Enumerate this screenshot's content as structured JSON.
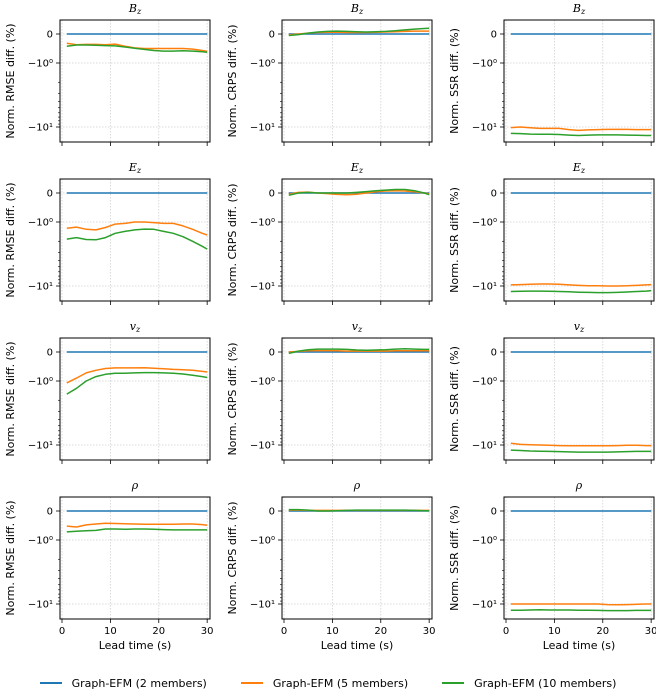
{
  "chart_data": {
    "type": "line",
    "layout": "grid 4 rows x 3 columns",
    "yscale": "symlog",
    "ylim": [
      -17,
      0.5
    ],
    "xlim": [
      0,
      31
    ],
    "x_ticks": [
      0,
      10,
      20,
      30
    ],
    "x_tick_labels": [
      "0",
      "10",
      "20",
      "30"
    ],
    "y_ticks": [
      0,
      -1,
      -10
    ],
    "y_tick_labels": [
      "0",
      "−10⁰",
      "−10¹"
    ],
    "xlabel": "Lead time (s)",
    "grid": true,
    "legend_position": "bottom-center",
    "x": [
      1,
      3,
      5,
      7,
      9,
      11,
      13,
      15,
      17,
      19,
      21,
      23,
      25,
      27,
      29,
      30
    ],
    "series_names": [
      "Graph-EFM (2 members)",
      "Graph-EFM (5 members)",
      "Graph-EFM (10 members)"
    ],
    "series_colors": [
      "#1f77b4",
      "#ff7f0e",
      "#2ca02c"
    ],
    "rows": [
      "B_z",
      "E_z",
      "v_z",
      "ρ"
    ],
    "row_titles": [
      "Bz",
      "Ez",
      "vz",
      "ρ"
    ],
    "columns": [
      "RMSE",
      "CRPS",
      "SSR"
    ],
    "ylabels": [
      "Norm. RMSE diff. (%)",
      "Norm. CRPS diff. (%)",
      "Norm. SSR diff. (%)"
    ],
    "panels": [
      {
        "row": 0,
        "col": 0,
        "title": "Bz",
        "ylabel": "Norm. RMSE diff. (%)",
        "series": [
          {
            "name": "Graph-EFM (2 members)",
            "values": [
              0,
              0,
              0,
              0,
              0,
              0,
              0,
              0,
              0,
              0,
              0,
              0,
              0,
              0,
              0,
              0
            ]
          },
          {
            "name": "Graph-EFM (5 members)",
            "values": [
              -0.32,
              -0.37,
              -0.36,
              -0.36,
              -0.37,
              -0.35,
              -0.42,
              -0.48,
              -0.5,
              -0.5,
              -0.5,
              -0.5,
              -0.5,
              -0.52,
              -0.57,
              -0.6
            ]
          },
          {
            "name": "Graph-EFM (10 members)",
            "values": [
              -0.42,
              -0.38,
              -0.38,
              -0.39,
              -0.4,
              -0.41,
              -0.45,
              -0.49,
              -0.53,
              -0.57,
              -0.59,
              -0.59,
              -0.58,
              -0.59,
              -0.61,
              -0.63
            ]
          }
        ]
      },
      {
        "row": 0,
        "col": 1,
        "title": "Bz",
        "ylabel": "Norm. CRPS diff. (%)",
        "series": [
          {
            "name": "Graph-EFM (2 members)",
            "values": [
              0,
              0,
              0,
              0,
              0,
              0,
              0,
              0,
              0,
              0,
              0,
              0,
              0,
              0,
              0,
              0
            ]
          },
          {
            "name": "Graph-EFM (5 members)",
            "values": [
              -0.03,
              0.0,
              0.03,
              0.05,
              0.06,
              0.06,
              0.05,
              0.05,
              0.05,
              0.06,
              0.07,
              0.08,
              0.09,
              0.1,
              0.1,
              0.1
            ]
          },
          {
            "name": "Graph-EFM (10 members)",
            "values": [
              -0.05,
              -0.02,
              0.03,
              0.07,
              0.09,
              0.1,
              0.09,
              0.08,
              0.07,
              0.08,
              0.09,
              0.11,
              0.14,
              0.17,
              0.19,
              0.2
            ]
          }
        ]
      },
      {
        "row": 0,
        "col": 2,
        "title": "Bz",
        "ylabel": "Norm. SSR diff. (%)",
        "series": [
          {
            "name": "Graph-EFM (2 members)",
            "values": [
              0,
              0,
              0,
              0,
              0,
              0,
              0,
              0,
              0,
              0,
              0,
              0,
              0,
              0,
              0,
              0
            ]
          },
          {
            "name": "Graph-EFM (5 members)",
            "values": [
              -10.2,
              -10.0,
              -10.3,
              -10.5,
              -10.5,
              -10.5,
              -11.0,
              -11.3,
              -11.1,
              -11.0,
              -10.9,
              -10.9,
              -10.9,
              -11.0,
              -11.0,
              -11.0
            ]
          },
          {
            "name": "Graph-EFM (10 members)",
            "values": [
              -12.6,
              -12.7,
              -12.9,
              -13.0,
              -13.0,
              -13.1,
              -13.4,
              -13.6,
              -13.4,
              -13.3,
              -13.3,
              -13.3,
              -13.4,
              -13.5,
              -13.6,
              -13.6
            ]
          }
        ]
      },
      {
        "row": 1,
        "col": 0,
        "title": "Ez",
        "ylabel": "Norm. RMSE diff. (%)",
        "series": [
          {
            "name": "Graph-EFM (2 members)",
            "values": [
              0,
              0,
              0,
              0,
              0,
              0,
              0,
              0,
              0,
              0,
              0,
              0,
              0,
              0,
              0,
              0
            ]
          },
          {
            "name": "Graph-EFM (5 members)",
            "values": [
              -1.25,
              -1.2,
              -1.3,
              -1.33,
              -1.22,
              -1.08,
              -1.05,
              -1.0,
              -1.0,
              -1.02,
              -1.05,
              -1.05,
              -1.15,
              -1.3,
              -1.5,
              -1.6
            ]
          },
          {
            "name": "Graph-EFM (10 members)",
            "values": [
              -1.85,
              -1.75,
              -1.88,
              -1.9,
              -1.75,
              -1.5,
              -1.4,
              -1.33,
              -1.29,
              -1.3,
              -1.4,
              -1.5,
              -1.7,
              -2.0,
              -2.4,
              -2.65
            ]
          }
        ]
      },
      {
        "row": 1,
        "col": 1,
        "title": "Ez",
        "ylabel": "Norm. CRPS diff. (%)",
        "series": [
          {
            "name": "Graph-EFM (2 members)",
            "values": [
              0,
              0,
              0,
              0,
              0,
              0,
              0,
              0,
              0,
              0,
              0,
              0,
              0,
              0,
              0,
              0
            ]
          },
          {
            "name": "Graph-EFM (5 members)",
            "values": [
              -0.05,
              0.02,
              0.03,
              0.0,
              -0.02,
              -0.05,
              -0.06,
              -0.04,
              0.0,
              0.04,
              0.07,
              0.08,
              0.07,
              0.04,
              0.0,
              -0.03
            ]
          },
          {
            "name": "Graph-EFM (10 members)",
            "values": [
              -0.08,
              0.0,
              0.02,
              0.0,
              0.0,
              0.0,
              0.0,
              0.02,
              0.05,
              0.08,
              0.1,
              0.12,
              0.12,
              0.08,
              0.0,
              -0.06
            ]
          }
        ]
      },
      {
        "row": 1,
        "col": 2,
        "title": "Ez",
        "ylabel": "Norm. SSR diff. (%)",
        "series": [
          {
            "name": "Graph-EFM (2 members)",
            "values": [
              0,
              0,
              0,
              0,
              0,
              0,
              0,
              0,
              0,
              0,
              0,
              0,
              0,
              0,
              0,
              0
            ]
          },
          {
            "name": "Graph-EFM (5 members)",
            "values": [
              -9.6,
              -9.5,
              -9.4,
              -9.3,
              -9.3,
              -9.4,
              -9.6,
              -9.8,
              -9.9,
              -9.9,
              -10.0,
              -10.0,
              -9.9,
              -9.8,
              -9.6,
              -9.5
            ]
          },
          {
            "name": "Graph-EFM (10 members)",
            "values": [
              -12.2,
              -12.1,
              -12.0,
              -12.0,
              -12.1,
              -12.2,
              -12.3,
              -12.5,
              -12.6,
              -12.7,
              -12.7,
              -12.6,
              -12.4,
              -12.2,
              -12.0,
              -11.8
            ]
          }
        ]
      },
      {
        "row": 2,
        "col": 0,
        "title": "vz",
        "ylabel": "Norm. RMSE diff. (%)",
        "series": [
          {
            "name": "Graph-EFM (2 members)",
            "values": [
              0,
              0,
              0,
              0,
              0,
              0,
              0,
              0,
              0,
              0,
              0,
              0,
              0,
              0,
              0,
              0
            ]
          },
          {
            "name": "Graph-EFM (5 members)",
            "values": [
              -1.07,
              -0.9,
              -0.72,
              -0.63,
              -0.57,
              -0.55,
              -0.55,
              -0.55,
              -0.54,
              -0.56,
              -0.58,
              -0.6,
              -0.61,
              -0.63,
              -0.67,
              -0.69
            ]
          },
          {
            "name": "Graph-EFM (10 members)",
            "values": [
              -1.6,
              -1.3,
              -1.0,
              -0.85,
              -0.77,
              -0.73,
              -0.73,
              -0.72,
              -0.71,
              -0.71,
              -0.72,
              -0.73,
              -0.76,
              -0.8,
              -0.85,
              -0.88
            ]
          }
        ]
      },
      {
        "row": 2,
        "col": 1,
        "title": "vz",
        "ylabel": "Norm. CRPS diff. (%)",
        "series": [
          {
            "name": "Graph-EFM (2 members)",
            "values": [
              0,
              0,
              0,
              0,
              0,
              0,
              0,
              0,
              0,
              0,
              0,
              0,
              0,
              0,
              0,
              0
            ]
          },
          {
            "name": "Graph-EFM (5 members)",
            "values": [
              0.0,
              0.02,
              0.04,
              0.05,
              0.05,
              0.04,
              0.03,
              0.03,
              0.03,
              0.03,
              0.03,
              0.04,
              0.04,
              0.04,
              0.04,
              0.04
            ]
          },
          {
            "name": "Graph-EFM (10 members)",
            "values": [
              -0.05,
              0.03,
              0.08,
              0.1,
              0.1,
              0.1,
              0.09,
              0.07,
              0.06,
              0.07,
              0.08,
              0.1,
              0.11,
              0.1,
              0.09,
              0.09
            ]
          }
        ]
      },
      {
        "row": 2,
        "col": 2,
        "title": "vz",
        "ylabel": "Norm. SSR diff. (%)",
        "series": [
          {
            "name": "Graph-EFM (2 members)",
            "values": [
              0,
              0,
              0,
              0,
              0,
              0,
              0,
              0,
              0,
              0,
              0,
              0,
              0,
              0,
              0,
              0
            ]
          },
          {
            "name": "Graph-EFM (5 members)",
            "values": [
              -9.4,
              -9.8,
              -9.9,
              -10.0,
              -10.1,
              -10.2,
              -10.3,
              -10.3,
              -10.3,
              -10.3,
              -10.3,
              -10.2,
              -10.1,
              -10.1,
              -10.2,
              -10.2
            ]
          },
          {
            "name": "Graph-EFM (10 members)",
            "values": [
              -12.0,
              -12.2,
              -12.4,
              -12.5,
              -12.6,
              -12.7,
              -12.8,
              -12.9,
              -12.9,
              -12.9,
              -12.9,
              -12.8,
              -12.7,
              -12.6,
              -12.6,
              -12.6
            ]
          }
        ]
      },
      {
        "row": 3,
        "col": 0,
        "title": "ρ",
        "ylabel": "Norm. RMSE diff. (%)",
        "series": [
          {
            "name": "Graph-EFM (2 members)",
            "values": [
              0,
              0,
              0,
              0,
              0,
              0,
              0,
              0,
              0,
              0,
              0,
              0,
              0,
              0,
              0,
              0
            ]
          },
          {
            "name": "Graph-EFM (5 members)",
            "values": [
              -0.52,
              -0.55,
              -0.48,
              -0.45,
              -0.42,
              -0.43,
              -0.44,
              -0.45,
              -0.46,
              -0.46,
              -0.46,
              -0.46,
              -0.45,
              -0.45,
              -0.47,
              -0.49
            ]
          },
          {
            "name": "Graph-EFM (10 members)",
            "values": [
              -0.72,
              -0.7,
              -0.68,
              -0.67,
              -0.62,
              -0.62,
              -0.63,
              -0.62,
              -0.62,
              -0.63,
              -0.64,
              -0.65,
              -0.65,
              -0.65,
              -0.65,
              -0.65
            ]
          }
        ]
      },
      {
        "row": 3,
        "col": 1,
        "title": "ρ",
        "ylabel": "Norm. CRPS diff. (%)",
        "series": [
          {
            "name": "Graph-EFM (2 members)",
            "values": [
              0,
              0,
              0,
              0,
              0,
              0,
              0,
              0,
              0,
              0,
              0,
              0,
              0,
              0,
              0,
              0
            ]
          },
          {
            "name": "Graph-EFM (5 members)",
            "values": [
              0.03,
              0.03,
              0.02,
              0.02,
              0.02,
              0.02,
              0.02,
              0.02,
              0.02,
              0.02,
              0.02,
              0.02,
              0.02,
              0.02,
              0.02,
              0.02
            ]
          },
          {
            "name": "Graph-EFM (10 members)",
            "values": [
              0.05,
              0.05,
              0.03,
              0.0,
              0.0,
              0.01,
              0.02,
              0.03,
              0.03,
              0.03,
              0.03,
              0.03,
              0.03,
              0.02,
              0.01,
              0.01
            ]
          }
        ]
      },
      {
        "row": 3,
        "col": 2,
        "title": "ρ",
        "ylabel": "Norm. SSR diff. (%)",
        "series": [
          {
            "name": "Graph-EFM (2 members)",
            "values": [
              0,
              0,
              0,
              0,
              0,
              0,
              0,
              0,
              0,
              0,
              0,
              0,
              0,
              0,
              0,
              0
            ]
          },
          {
            "name": "Graph-EFM (5 members)",
            "values": [
              -10.0,
              -10.0,
              -10.0,
              -10.0,
              -10.0,
              -10.0,
              -10.0,
              -10.0,
              -10.0,
              -10.0,
              -10.2,
              -10.3,
              -10.2,
              -10.1,
              -10.0,
              -10.0
            ]
          },
          {
            "name": "Graph-EFM (10 members)",
            "values": [
              -12.5,
              -12.5,
              -12.4,
              -12.3,
              -12.4,
              -12.4,
              -12.4,
              -12.5,
              -12.5,
              -12.6,
              -12.7,
              -12.7,
              -12.7,
              -12.6,
              -12.6,
              -12.6
            ]
          }
        ]
      }
    ]
  },
  "legend": {
    "items": [
      {
        "label": "Graph-EFM (2 members)",
        "color": "#1f77b4"
      },
      {
        "label": "Graph-EFM (5 members)",
        "color": "#ff7f0e"
      },
      {
        "label": "Graph-EFM (10 members)",
        "color": "#2ca02c"
      }
    ]
  }
}
